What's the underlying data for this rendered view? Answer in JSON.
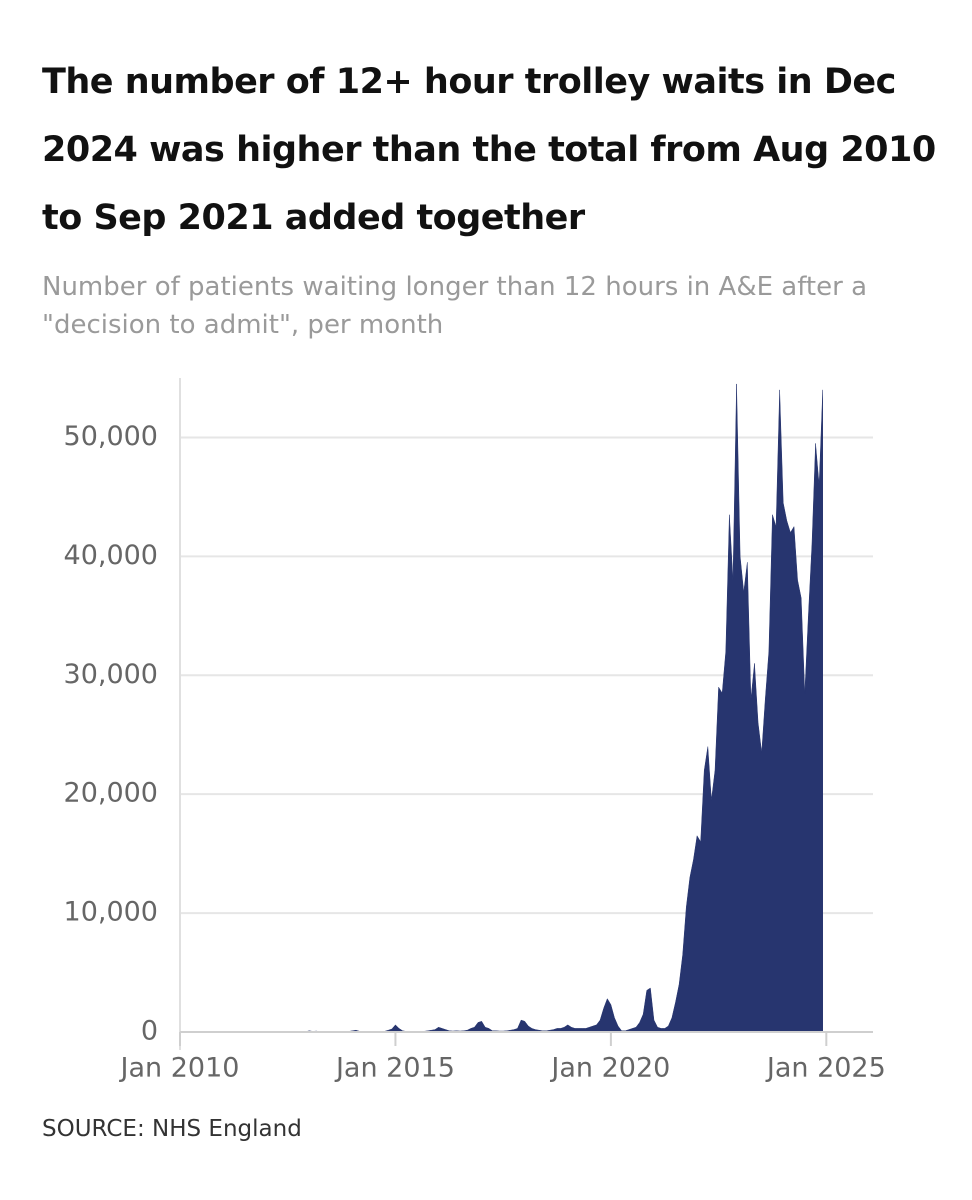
{
  "chart_data": {
    "type": "area",
    "title": "The number of 12+ hour trolley waits in Dec 2024 was higher than the total from Aug 2010 to Sep 2021 added together",
    "subtitle": "Number of patients waiting longer than 12 hours in A&E after a \"decision to admit\", per month",
    "source": "SOURCE: NHS England",
    "color": "#27356f",
    "x": [
      "2010-08",
      "2010-09",
      "2010-10",
      "2010-11",
      "2010-12",
      "2011-01",
      "2011-02",
      "2011-03",
      "2011-04",
      "2011-05",
      "2011-06",
      "2011-07",
      "2011-08",
      "2011-09",
      "2011-10",
      "2011-11",
      "2011-12",
      "2012-01",
      "2012-02",
      "2012-03",
      "2012-04",
      "2012-05",
      "2012-06",
      "2012-07",
      "2012-08",
      "2012-09",
      "2012-10",
      "2012-11",
      "2012-12",
      "2013-01",
      "2013-02",
      "2013-03",
      "2013-04",
      "2013-05",
      "2013-06",
      "2013-07",
      "2013-08",
      "2013-09",
      "2013-10",
      "2013-11",
      "2013-12",
      "2014-01",
      "2014-02",
      "2014-03",
      "2014-04",
      "2014-05",
      "2014-06",
      "2014-07",
      "2014-08",
      "2014-09",
      "2014-10",
      "2014-11",
      "2014-12",
      "2015-01",
      "2015-02",
      "2015-03",
      "2015-04",
      "2015-05",
      "2015-06",
      "2015-07",
      "2015-08",
      "2015-09",
      "2015-10",
      "2015-11",
      "2015-12",
      "2016-01",
      "2016-02",
      "2016-03",
      "2016-04",
      "2016-05",
      "2016-06",
      "2016-07",
      "2016-08",
      "2016-09",
      "2016-10",
      "2016-11",
      "2016-12",
      "2017-01",
      "2017-02",
      "2017-03",
      "2017-04",
      "2017-05",
      "2017-06",
      "2017-07",
      "2017-08",
      "2017-09",
      "2017-10",
      "2017-11",
      "2017-12",
      "2018-01",
      "2018-02",
      "2018-03",
      "2018-04",
      "2018-05",
      "2018-06",
      "2018-07",
      "2018-08",
      "2018-09",
      "2018-10",
      "2018-11",
      "2018-12",
      "2019-01",
      "2019-02",
      "2019-03",
      "2019-04",
      "2019-05",
      "2019-06",
      "2019-07",
      "2019-08",
      "2019-09",
      "2019-10",
      "2019-11",
      "2019-12",
      "2020-01",
      "2020-02",
      "2020-03",
      "2020-04",
      "2020-05",
      "2020-06",
      "2020-07",
      "2020-08",
      "2020-09",
      "2020-10",
      "2020-11",
      "2020-12",
      "2021-01",
      "2021-02",
      "2021-03",
      "2021-04",
      "2021-05",
      "2021-06",
      "2021-07",
      "2021-08",
      "2021-09",
      "2021-10",
      "2021-11",
      "2021-12",
      "2022-01",
      "2022-02",
      "2022-03",
      "2022-04",
      "2022-05",
      "2022-06",
      "2022-07",
      "2022-08",
      "2022-09",
      "2022-10",
      "2022-11",
      "2022-12",
      "2023-01",
      "2023-02",
      "2023-03",
      "2023-04",
      "2023-05",
      "2023-06",
      "2023-07",
      "2023-08",
      "2023-09",
      "2023-10",
      "2023-11",
      "2023-12",
      "2024-01",
      "2024-02",
      "2024-03",
      "2024-04",
      "2024-05",
      "2024-06",
      "2024-07",
      "2024-08",
      "2024-09",
      "2024-10",
      "2024-11",
      "2024-12"
    ],
    "values": [
      0,
      0,
      0,
      5,
      15,
      20,
      10,
      5,
      0,
      0,
      0,
      0,
      0,
      0,
      0,
      5,
      15,
      15,
      5,
      5,
      0,
      0,
      0,
      0,
      0,
      0,
      5,
      10,
      30,
      100,
      50,
      80,
      10,
      5,
      0,
      0,
      0,
      5,
      10,
      30,
      50,
      100,
      150,
      60,
      30,
      10,
      10,
      10,
      10,
      20,
      60,
      150,
      250,
      600,
      300,
      100,
      50,
      50,
      30,
      40,
      50,
      60,
      100,
      150,
      200,
      400,
      300,
      200,
      100,
      80,
      100,
      80,
      100,
      150,
      300,
      400,
      800,
      900,
      400,
      300,
      100,
      100,
      80,
      80,
      100,
      150,
      200,
      300,
      1000,
      900,
      500,
      300,
      200,
      150,
      100,
      100,
      150,
      200,
      300,
      300,
      400,
      600,
      400,
      300,
      300,
      300,
      300,
      400,
      500,
      600,
      1000,
      2000,
      2800,
      2300,
      1200,
      500,
      100,
      100,
      200,
      300,
      400,
      800,
      1500,
      3500,
      3700,
      1000,
      400,
      300,
      300,
      500,
      1200,
      2500,
      4000,
      6500,
      10500,
      13000,
      14500,
      16500,
      16000,
      22000,
      24000,
      19500,
      22000,
      29000,
      28500,
      32000,
      43500,
      38000,
      54500,
      40000,
      37000,
      39500,
      28000,
      31000,
      26000,
      23500,
      28000,
      32000,
      43500,
      42500,
      54000,
      44500,
      43000,
      42000,
      42500,
      38000,
      36500,
      28500,
      35000,
      41000,
      49500,
      46000,
      54000
    ],
    "xlim": [
      "2010-01",
      "2026-02"
    ],
    "xticks": [
      {
        "value": "2010-01",
        "label": "Jan 2010"
      },
      {
        "value": "2015-01",
        "label": "Jan 2015"
      },
      {
        "value": "2020-01",
        "label": "Jan 2020"
      },
      {
        "value": "2025-01",
        "label": "Jan 2025"
      }
    ],
    "ylim": [
      0,
      55000
    ],
    "yticks": [
      0,
      {
        "value": 10000,
        "label": "10,000"
      },
      {
        "value": 20000,
        "label": "20,000"
      },
      {
        "value": 30000,
        "label": "30,000"
      },
      {
        "value": 40000,
        "label": "40,000"
      },
      {
        "value": 50000,
        "label": "50,000"
      }
    ],
    "grid": true
  }
}
